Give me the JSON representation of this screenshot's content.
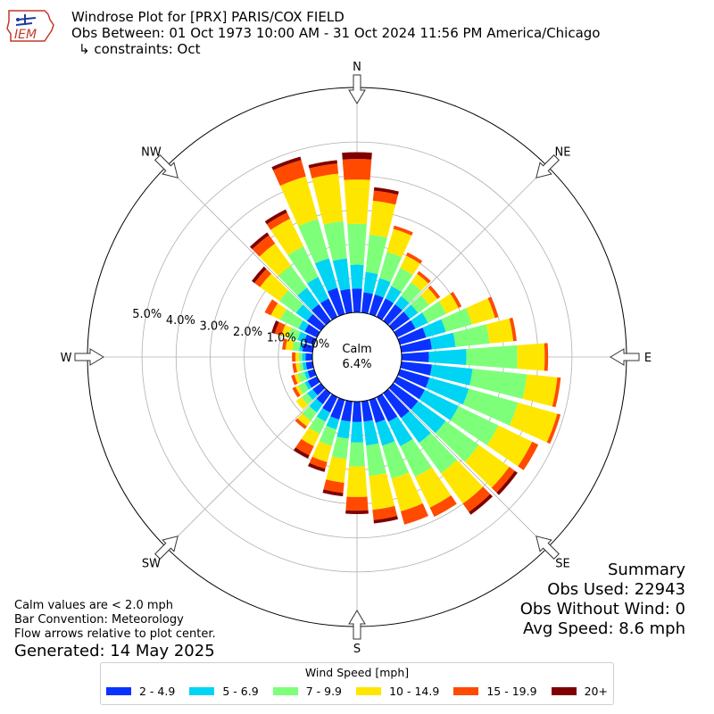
{
  "header": {
    "title_line1": "Windrose Plot for [PRX] PARIS/COX FIELD",
    "title_line2": "Obs Between: 01 Oct 1973 10:00 AM - 31 Oct 2024 11:56 PM America/Chicago",
    "title_line3": "↳ constraints: Oct",
    "logo_text": "IEM"
  },
  "notes": {
    "line1": "Calm values are < 2.0 mph",
    "line2": "Bar Convention: Meteorology",
    "line3": "Flow arrows relative to plot center.",
    "generated": "Generated: 14 May 2025"
  },
  "summary": {
    "heading": "Summary",
    "obs_used": "Obs Used: 22943",
    "obs_without_wind": "Obs Without Wind: 0",
    "avg_speed": "Avg Speed: 8.6 mph"
  },
  "legend": {
    "title": "Wind Speed [mph]",
    "items": [
      {
        "label": "2 - 4.9",
        "color": "#0a32ff"
      },
      {
        "label": "5 - 6.9",
        "color": "#00d4f4"
      },
      {
        "label": "7 - 9.9",
        "color": "#7dff7a"
      },
      {
        "label": "10 - 14.9",
        "color": "#ffe600"
      },
      {
        "label": "15 - 19.9",
        "color": "#ff4a00"
      },
      {
        "label": "20+",
        "color": "#7f0000"
      }
    ]
  },
  "chart_data": {
    "type": "windrose",
    "calm_label": "Calm",
    "calm_value": "6.4%",
    "compass_labels": [
      "N",
      "NE",
      "E",
      "SE",
      "S",
      "SW",
      "W",
      "NW"
    ],
    "radial_ticks": [
      0,
      1,
      2,
      3,
      4,
      5
    ],
    "radial_tick_labels": [
      "0.0%",
      "1.0%",
      "2.0%",
      "3.0%",
      "4.0%",
      "5.0%"
    ],
    "radial_max": 6.6,
    "speed_bins": [
      "2 - 4.9",
      "5 - 6.9",
      "7 - 9.9",
      "10 - 14.9",
      "15 - 19.9",
      "20+"
    ],
    "direction_step_deg": 10,
    "directions_deg": [
      0,
      10,
      20,
      30,
      40,
      50,
      60,
      70,
      80,
      90,
      100,
      110,
      120,
      130,
      140,
      150,
      160,
      170,
      180,
      190,
      200,
      210,
      220,
      230,
      240,
      250,
      260,
      270,
      280,
      290,
      300,
      310,
      320,
      330,
      340,
      350
    ],
    "cumulative_percent": [
      [
        0.7,
        1.4,
        2.6,
        3.9,
        4.5,
        4.7
      ],
      [
        0.6,
        1.2,
        2.3,
        3.3,
        3.6,
        3.7
      ],
      [
        0.6,
        1.1,
        1.9,
        2.6,
        2.7,
        2.7
      ],
      [
        0.6,
        1.0,
        1.6,
        2.0,
        2.1,
        2.1
      ],
      [
        0.6,
        0.9,
        1.4,
        1.7,
        1.8,
        1.8
      ],
      [
        0.6,
        0.9,
        1.3,
        1.6,
        1.7,
        1.7
      ],
      [
        0.6,
        1.0,
        1.6,
        2.0,
        2.1,
        2.1
      ],
      [
        0.8,
        1.4,
        2.2,
        2.9,
        3.0,
        3.0
      ],
      [
        0.9,
        1.6,
        2.6,
        3.3,
        3.4,
        3.4
      ],
      [
        0.8,
        1.9,
        3.4,
        4.2,
        4.3,
        4.3
      ],
      [
        0.9,
        2.1,
        3.7,
        4.6,
        4.7,
        4.7
      ],
      [
        0.9,
        2.1,
        3.6,
        4.8,
        4.9,
        4.9
      ],
      [
        0.9,
        2.0,
        3.3,
        4.4,
        4.6,
        4.6
      ],
      [
        0.9,
        1.9,
        3.1,
        4.2,
        4.4,
        4.5
      ],
      [
        0.9,
        1.8,
        2.9,
        4.0,
        4.3,
        4.4
      ],
      [
        0.8,
        1.6,
        2.6,
        3.6,
        3.9,
        3.9
      ],
      [
        0.7,
        1.4,
        2.4,
        3.4,
        3.8,
        3.8
      ],
      [
        0.6,
        1.3,
        2.2,
        3.2,
        3.5,
        3.6
      ],
      [
        0.6,
        1.2,
        1.9,
        2.8,
        3.2,
        3.3
      ],
      [
        0.6,
        1.1,
        1.7,
        2.4,
        2.7,
        2.8
      ],
      [
        0.6,
        0.9,
        1.4,
        1.9,
        2.1,
        2.2
      ],
      [
        0.5,
        0.8,
        1.2,
        1.6,
        1.9,
        2.0
      ],
      [
        0.4,
        0.7,
        1.0,
        1.2,
        1.3,
        1.3
      ],
      [
        0.3,
        0.5,
        0.7,
        0.9,
        0.9,
        0.9
      ],
      [
        0.3,
        0.4,
        0.6,
        0.7,
        0.8,
        0.8
      ],
      [
        0.2,
        0.3,
        0.5,
        0.6,
        0.7,
        0.7
      ],
      [
        0.2,
        0.3,
        0.4,
        0.5,
        0.6,
        0.6
      ],
      [
        0.2,
        0.3,
        0.4,
        0.5,
        0.6,
        0.6
      ],
      [
        0.3,
        0.4,
        0.6,
        0.8,
        0.9,
        0.9
      ],
      [
        0.3,
        0.5,
        0.8,
        1.0,
        1.2,
        1.3
      ],
      [
        0.4,
        0.6,
        1.2,
        1.5,
        1.7,
        1.7
      ],
      [
        0.5,
        0.9,
        1.5,
        2.2,
        2.4,
        2.5
      ],
      [
        0.6,
        1.2,
        2.0,
        2.8,
        3.1,
        3.2
      ],
      [
        0.6,
        1.3,
        2.3,
        3.2,
        3.4,
        3.5
      ],
      [
        0.8,
        1.7,
        2.9,
        4.2,
        4.7,
        4.8
      ],
      [
        0.7,
        1.6,
        2.7,
        4.1,
        4.4,
        4.5
      ]
    ],
    "grid": true,
    "legend_position": "bottom-center"
  }
}
